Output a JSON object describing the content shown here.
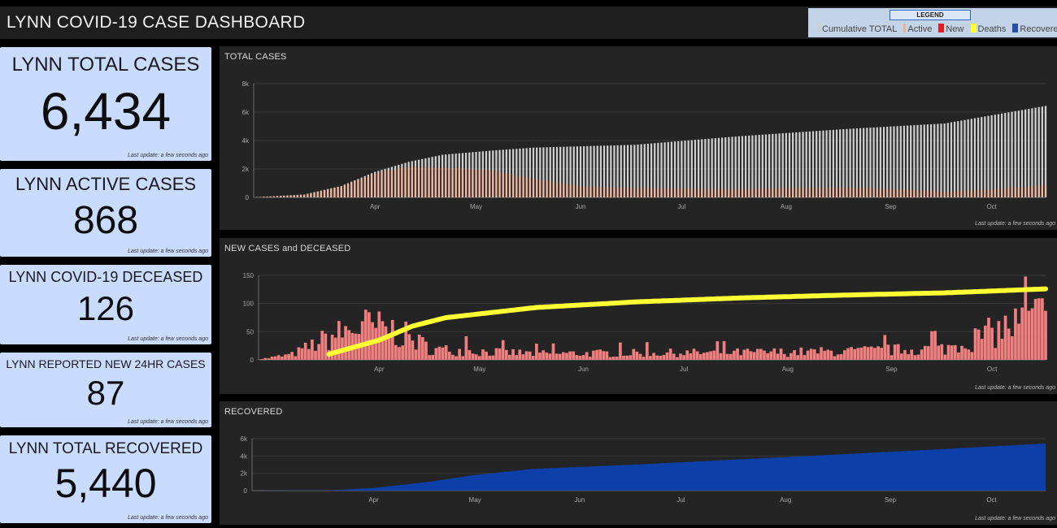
{
  "header": {
    "title": "LYNN COVID-19 CASE DASHBOARD"
  },
  "legend": {
    "title": "LEGEND",
    "items": [
      {
        "label": "Cumulative TOTAL",
        "color": "#cfcfcf"
      },
      {
        "label": "Active",
        "color": "#f0b090"
      },
      {
        "label": "New",
        "color": "#e02020"
      },
      {
        "label": "Deaths",
        "color": "#ffff33"
      },
      {
        "label": "Recovered",
        "color": "#2a4da8"
      }
    ]
  },
  "kpis": {
    "total": {
      "title": "LYNN TOTAL CASES",
      "value": "6,434",
      "update": "Last update: a few seconds ago"
    },
    "active": {
      "title": "LYNN ACTIVE CASES",
      "value": "868",
      "update": "Last update: a few seconds ago"
    },
    "deceased": {
      "title": "LYNN COVID-19 DECEASED",
      "value": "126",
      "update": "Last update: a few seconds ago"
    },
    "new24": {
      "title": "LYNN REPORTED NEW 24HR CASES",
      "value": "87",
      "update": "Last update: a few seconds ago"
    },
    "recovered": {
      "title": "LYNN TOTAL RECOVERED",
      "value": "5,440",
      "update": "Last update: a few seconds ago"
    }
  },
  "panels": {
    "total": {
      "title": "TOTAL CASES",
      "update": "Last update: a few seconds ago"
    },
    "newdec": {
      "title": "NEW CASES and DECEASED",
      "update": "Last update: a few seconds ago"
    },
    "recovered": {
      "title": "RECOVERED",
      "update": "Last update: a few seconds ago"
    }
  },
  "colors": {
    "cumulative": "#cfcfcf",
    "active": "#f2b49a",
    "new": "#f08080",
    "deaths": "#ffff33",
    "recovered": "#0d3fa8"
  },
  "chart_data": [
    {
      "type": "bar",
      "title": "TOTAL CASES",
      "x_start": "2020-03-10",
      "x_end": "2020-10-31",
      "xticks": [
        "Apr",
        "May",
        "Jun",
        "Jul",
        "Aug",
        "Sep",
        "Oct"
      ],
      "ylim": [
        0,
        8000
      ],
      "yticks": [
        "0",
        "2k",
        "4k",
        "6k",
        "8k"
      ],
      "series": [
        {
          "name": "Cumulative TOTAL",
          "anchors": [
            [
              "2020-03-10",
              0
            ],
            [
              "2020-03-25",
              200
            ],
            [
              "2020-04-05",
              800
            ],
            [
              "2020-04-15",
              1800
            ],
            [
              "2020-04-25",
              2500
            ],
            [
              "2020-05-05",
              3000
            ],
            [
              "2020-05-20",
              3300
            ],
            [
              "2020-06-01",
              3500
            ],
            [
              "2020-07-01",
              3700
            ],
            [
              "2020-08-01",
              4300
            ],
            [
              "2020-09-01",
              4800
            ],
            [
              "2020-10-01",
              5200
            ],
            [
              "2020-10-31",
              6434
            ]
          ]
        },
        {
          "name": "Active",
          "anchors": [
            [
              "2020-03-10",
              0
            ],
            [
              "2020-03-25",
              200
            ],
            [
              "2020-04-05",
              800
            ],
            [
              "2020-04-15",
              1700
            ],
            [
              "2020-04-25",
              2150
            ],
            [
              "2020-05-05",
              2100
            ],
            [
              "2020-05-20",
              1900
            ],
            [
              "2020-06-01",
              1300
            ],
            [
              "2020-06-15",
              800
            ],
            [
              "2020-07-01",
              650
            ],
            [
              "2020-08-01",
              600
            ],
            [
              "2020-09-01",
              700
            ],
            [
              "2020-09-20",
              550
            ],
            [
              "2020-10-01",
              400
            ],
            [
              "2020-10-15",
              550
            ],
            [
              "2020-10-31",
              868
            ]
          ]
        }
      ]
    },
    {
      "type": "bar",
      "title": "NEW CASES and DECEASED",
      "x_start": "2020-03-10",
      "x_end": "2020-10-31",
      "xticks": [
        "Apr",
        "May",
        "Jun",
        "Jul",
        "Aug",
        "Sep",
        "Oct"
      ],
      "ylim": [
        0,
        150
      ],
      "yticks": [
        "0",
        "50",
        "100",
        "150"
      ],
      "series": [
        {
          "name": "New",
          "envelope": [
            [
              "2020-03-10",
              1
            ],
            [
              "2020-03-20",
              10
            ],
            [
              "2020-04-01",
              45
            ],
            [
              "2020-04-10",
              65
            ],
            [
              "2020-04-20",
              55
            ],
            [
              "2020-05-01",
              20
            ],
            [
              "2020-06-01",
              12
            ],
            [
              "2020-08-01",
              14
            ],
            [
              "2020-09-01",
              16
            ],
            [
              "2020-10-01",
              22
            ],
            [
              "2020-10-31",
              87
            ]
          ]
        },
        {
          "name": "Deaths",
          "anchors": [
            [
              "2020-03-31",
              10
            ],
            [
              "2020-04-15",
              35
            ],
            [
              "2020-04-25",
              60
            ],
            [
              "2020-05-05",
              75
            ],
            [
              "2020-06-01",
              93
            ],
            [
              "2020-07-01",
              103
            ],
            [
              "2020-08-01",
              110
            ],
            [
              "2020-09-01",
              115
            ],
            [
              "2020-10-01",
              119
            ],
            [
              "2020-10-31",
              126
            ]
          ]
        }
      ]
    },
    {
      "type": "area",
      "title": "RECOVERED",
      "x_start": "2020-03-10",
      "x_end": "2020-10-31",
      "xticks": [
        "Apr",
        "May",
        "Jun",
        "Jul",
        "Aug",
        "Sep",
        "Oct"
      ],
      "ylim": [
        0,
        6000
      ],
      "yticks": [
        "0",
        "2k",
        "4k",
        "6k"
      ],
      "series": [
        {
          "name": "Recovered",
          "anchors": [
            [
              "2020-03-10",
              0
            ],
            [
              "2020-04-01",
              30
            ],
            [
              "2020-04-15",
              300
            ],
            [
              "2020-05-01",
              1000
            ],
            [
              "2020-05-15",
              1800
            ],
            [
              "2020-06-01",
              2500
            ],
            [
              "2020-07-01",
              3000
            ],
            [
              "2020-08-01",
              3600
            ],
            [
              "2020-09-01",
              4200
            ],
            [
              "2020-10-01",
              4800
            ],
            [
              "2020-10-31",
              5440
            ]
          ]
        }
      ]
    }
  ]
}
